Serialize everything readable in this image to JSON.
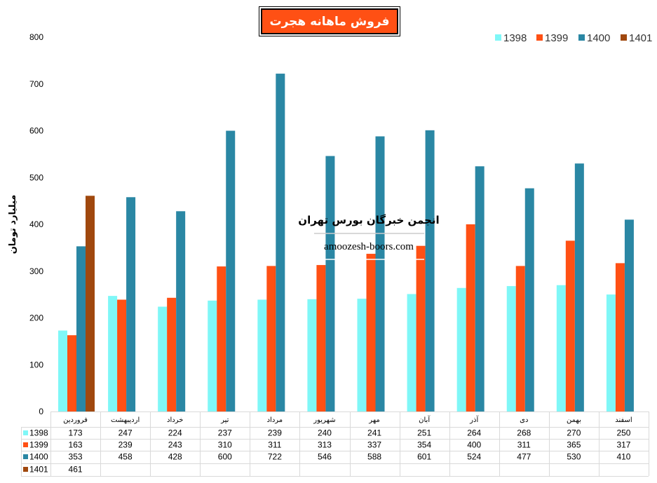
{
  "chart_data": {
    "type": "bar",
    "title": "فروش ماهانه هجرت",
    "ylabel": "میلیارد تومان",
    "xlabel": "",
    "ylim": [
      0,
      800
    ],
    "yticks": [
      0,
      100,
      200,
      300,
      400,
      500,
      600,
      700,
      800
    ],
    "grid": false,
    "legend_position": "top-right",
    "categories": [
      "فروردین",
      "اردیبهشت",
      "خرداد",
      "تیر",
      "مرداد",
      "شهریور",
      "مهر",
      "آبان",
      "آذر",
      "دی",
      "بهمن",
      "اسفند"
    ],
    "series": [
      {
        "name": "1398",
        "color": "#7FF7F7",
        "values": [
          173,
          247,
          224,
          237,
          239,
          240,
          241,
          251,
          264,
          268,
          270,
          250
        ]
      },
      {
        "name": "1399",
        "color": "#FF5014",
        "values": [
          163,
          239,
          243,
          310,
          311,
          313,
          337,
          354,
          400,
          311,
          365,
          317
        ]
      },
      {
        "name": "1400",
        "color": "#2A87A4",
        "values": [
          353,
          458,
          428,
          600,
          722,
          546,
          588,
          601,
          524,
          477,
          530,
          410
        ]
      },
      {
        "name": "1401",
        "color": "#A0480E",
        "values": [
          461,
          null,
          null,
          null,
          null,
          null,
          null,
          null,
          null,
          null,
          null,
          null
        ]
      }
    ],
    "data_table": true
  },
  "watermark": {
    "org": "انجمن خبرگان بورس تهران",
    "site": "amoozesh-boors.com"
  }
}
